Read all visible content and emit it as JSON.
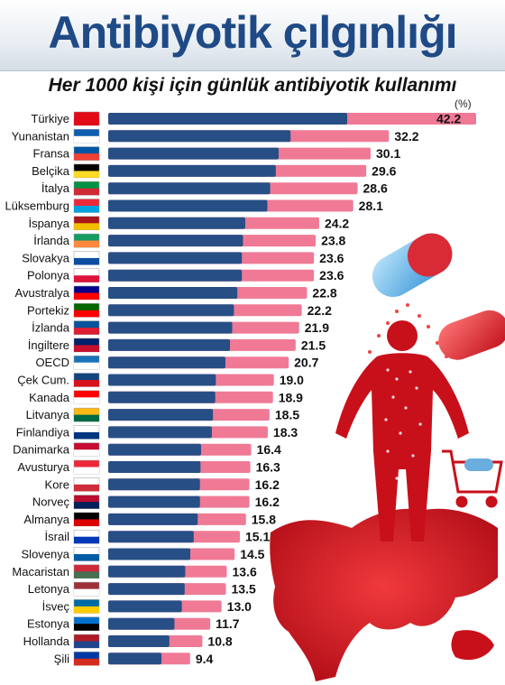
{
  "chart_data": {
    "type": "bar",
    "orientation": "horizontal",
    "title": "Antibiyotik çılgınlığı",
    "subtitle": "Her 1000 kişi için günlük antibiyotik kullanımı",
    "unit": "(%)",
    "categories": [
      "Türkiye",
      "Yunanistan",
      "Fransa",
      "Belçika",
      "İtalya",
      "Lüksemburg",
      "İspanya",
      "İrlanda",
      "Slovakya",
      "Polonya",
      "Avustralya",
      "Portekiz",
      "İzlanda",
      "İngiltere",
      "OECD",
      "Çek Cum.",
      "Kanada",
      "Litvanya",
      "Finlandiya",
      "Danimarka",
      "Avusturya",
      "Kore",
      "Norveç",
      "Almanya",
      "İsrail",
      "Slovenya",
      "Macaristan",
      "Letonya",
      "İsveç",
      "Estonya",
      "Hollanda",
      "Şili"
    ],
    "values": [
      42.2,
      32.2,
      30.1,
      29.6,
      28.6,
      28.1,
      24.2,
      23.8,
      23.6,
      23.6,
      22.8,
      22.2,
      21.9,
      21.5,
      20.7,
      19.0,
      18.9,
      18.5,
      18.3,
      16.4,
      16.3,
      16.2,
      16.2,
      15.8,
      15.1,
      14.5,
      13.6,
      13.5,
      13.0,
      11.7,
      10.8,
      9.4
    ],
    "value_labels": [
      "42.2",
      "32.2",
      "30.1",
      "29.6",
      "28.6",
      "28.1",
      "24.2",
      "23.8",
      "23.6",
      "23.6",
      "22.8",
      "22.2",
      "21.9",
      "21.5",
      "20.7",
      "19.0",
      "18.9",
      "18.5",
      "18.3",
      "16.4",
      "16.3",
      "16.2",
      "16.2",
      "15.8",
      "15.1",
      "14.5",
      "13.6",
      "13.5",
      "13.0",
      "11.7",
      "10.8",
      "9.4"
    ],
    "bar_colors": {
      "pink": "#f07a96",
      "blue": "#274f86"
    },
    "highlight_color": "#e5007a"
  }
}
